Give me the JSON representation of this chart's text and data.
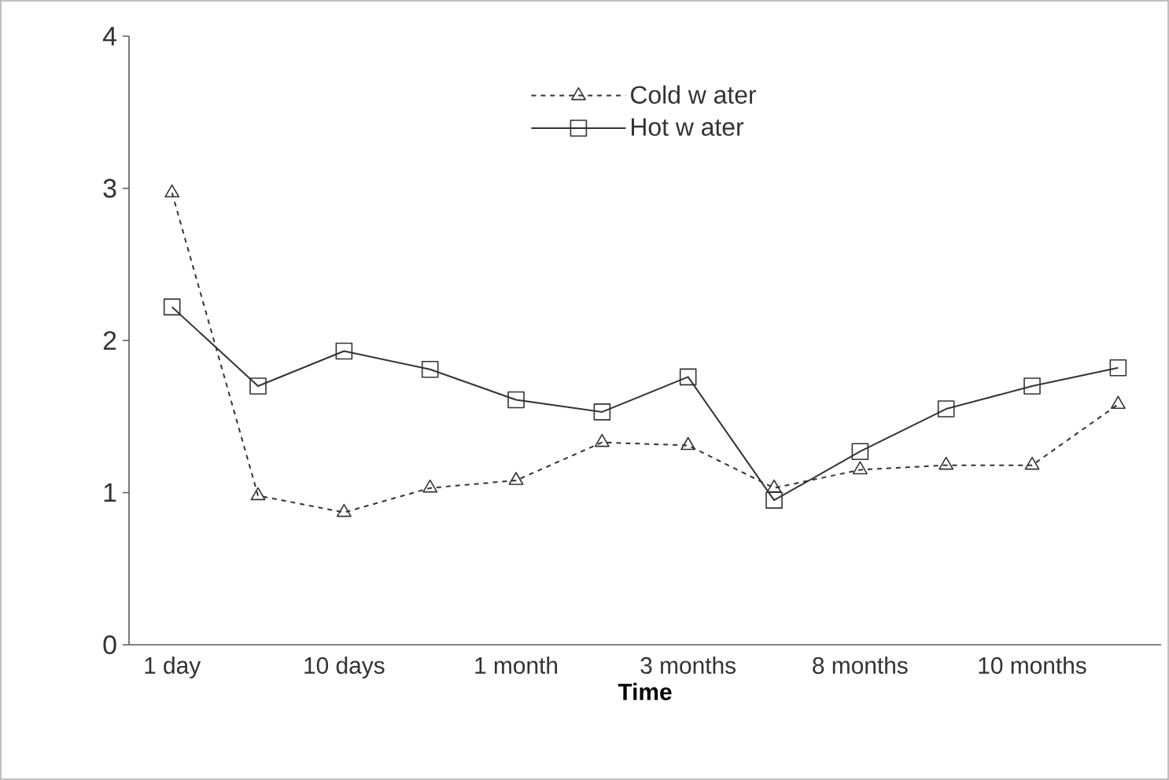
{
  "chart_data": {
    "type": "line",
    "xlabel": "**Time**",
    "categories": [
      "1 day",
      null,
      "10 days",
      null,
      "1 month",
      null,
      "3 months",
      null,
      "8 months",
      null,
      "10 months",
      null
    ],
    "series": [
      {
        "name": "Cold w ater",
        "color": "#333333",
        "marker": "triangle",
        "line_style": "dashed",
        "values": [
          2.97,
          0.98,
          0.87,
          1.03,
          1.08,
          1.33,
          1.31,
          1.03,
          1.15,
          1.18,
          1.18,
          1.58
        ]
      },
      {
        "name": "Hot w ater",
        "color": "#333333",
        "marker": "square",
        "line_style": "solid",
        "values": [
          2.22,
          1.7,
          1.93,
          1.81,
          1.61,
          1.53,
          1.76,
          0.95,
          1.27,
          1.55,
          1.7,
          1.82
        ]
      }
    ],
    "ylim": [
      0,
      4
    ],
    "yticks": [
      0,
      1,
      2,
      3,
      4
    ],
    "grid": false,
    "legend": "top"
  }
}
